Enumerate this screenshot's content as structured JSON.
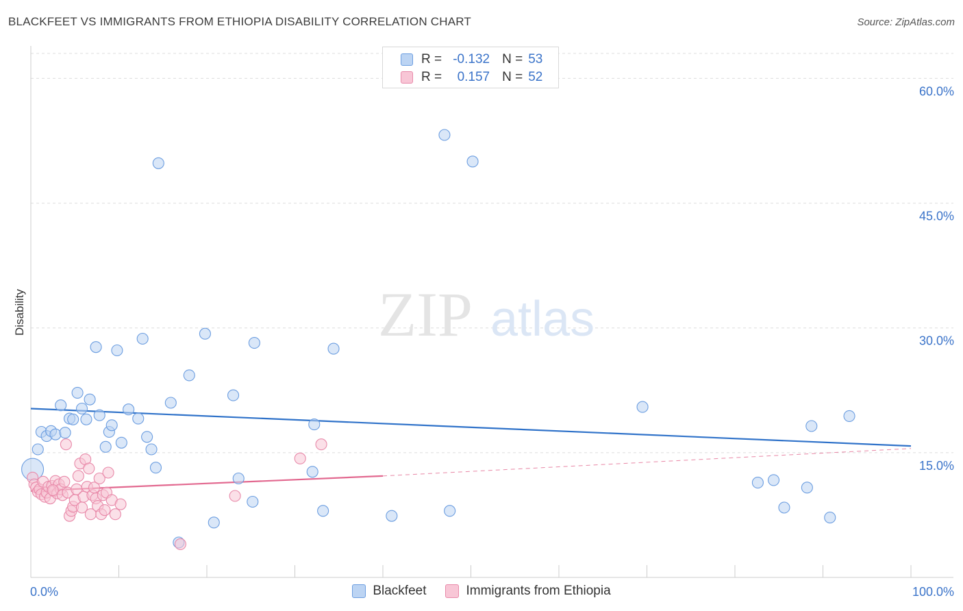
{
  "title": "BLACKFEET VS IMMIGRANTS FROM ETHIOPIA DISABILITY CORRELATION CHART",
  "source": "Source: ZipAtlas.com",
  "watermark": {
    "part1": "ZIP",
    "part2": "atlas"
  },
  "colors": {
    "blue_fill": "#bcd4f3",
    "blue_stroke": "#6b9de0",
    "blue_line": "#2f72c9",
    "pink_fill": "#f8c6d6",
    "pink_stroke": "#e889a9",
    "pink_line": "#e2688f",
    "axis_label": "#3a73c9",
    "grid": "#dddddd"
  },
  "legend_top": {
    "rows": [
      {
        "label": "R =",
        "r": "-0.132",
        "n_label": "N =",
        "n": "53",
        "series": "blue"
      },
      {
        "label": "R =",
        "r": "0.157",
        "n_label": "N =",
        "n": "52",
        "series": "pink"
      }
    ]
  },
  "chart_data": {
    "type": "scatter",
    "title": "BLACKFEET VS IMMIGRANTS FROM ETHIOPIA DISABILITY CORRELATION CHART",
    "xlabel": "",
    "ylabel": "Disability",
    "xlim": [
      0,
      100
    ],
    "ylim": [
      0,
      63
    ],
    "x_tick_labels": [
      "0.0%",
      "100.0%"
    ],
    "y_ticks": [
      15,
      30,
      45,
      60
    ],
    "y_tick_labels": [
      "15.0%",
      "30.0%",
      "45.0%",
      "60.0%"
    ],
    "grid": true,
    "legend_placement": "top-center",
    "series": [
      {
        "name": "Blackfeet",
        "color": "#6b9de0",
        "trend": {
          "x": [
            0,
            100
          ],
          "y": [
            20.3,
            15.8
          ],
          "style": "solid"
        },
        "points": [
          [
            0.2,
            13.0
          ],
          [
            0.8,
            15.4
          ],
          [
            1.2,
            17.5
          ],
          [
            1.8,
            17.0
          ],
          [
            2.3,
            17.6
          ],
          [
            2.8,
            17.2
          ],
          [
            3.4,
            20.7
          ],
          [
            3.9,
            17.4
          ],
          [
            4.4,
            19.1
          ],
          [
            4.8,
            19.0
          ],
          [
            5.3,
            22.2
          ],
          [
            5.8,
            20.3
          ],
          [
            6.3,
            19.0
          ],
          [
            6.7,
            21.4
          ],
          [
            7.4,
            27.7
          ],
          [
            7.8,
            19.5
          ],
          [
            8.5,
            15.7
          ],
          [
            8.9,
            17.5
          ],
          [
            9.2,
            18.3
          ],
          [
            9.8,
            27.3
          ],
          [
            10.3,
            16.2
          ],
          [
            11.1,
            20.2
          ],
          [
            12.2,
            19.1
          ],
          [
            12.7,
            28.7
          ],
          [
            13.2,
            16.9
          ],
          [
            13.7,
            15.4
          ],
          [
            14.2,
            13.2
          ],
          [
            14.5,
            49.8
          ],
          [
            15.9,
            21.0
          ],
          [
            16.8,
            4.2
          ],
          [
            18.0,
            24.3
          ],
          [
            19.8,
            29.3
          ],
          [
            20.8,
            6.6
          ],
          [
            23.0,
            21.9
          ],
          [
            23.6,
            11.9
          ],
          [
            25.2,
            9.1
          ],
          [
            25.4,
            28.2
          ],
          [
            32.0,
            12.7
          ],
          [
            32.2,
            18.4
          ],
          [
            33.2,
            8.0
          ],
          [
            34.4,
            27.5
          ],
          [
            41.0,
            7.4
          ],
          [
            47.0,
            53.2
          ],
          [
            47.6,
            8.0
          ],
          [
            50.2,
            50.0
          ],
          [
            69.5,
            20.5
          ],
          [
            82.6,
            11.4
          ],
          [
            84.4,
            11.7
          ],
          [
            85.6,
            8.4
          ],
          [
            88.2,
            10.8
          ],
          [
            88.7,
            18.2
          ],
          [
            90.8,
            7.2
          ],
          [
            93.0,
            19.4
          ]
        ]
      },
      {
        "name": "Immigrants from Ethiopia",
        "color": "#e889a9",
        "trend": {
          "x": [
            0,
            40
          ],
          "y": [
            10.4,
            12.2
          ],
          "style": "solid",
          "extend_to": [
            100,
            15.5
          ],
          "extend_style": "dashed"
        },
        "points": [
          [
            0.2,
            12.0
          ],
          [
            0.4,
            11.2
          ],
          [
            0.6,
            10.8
          ],
          [
            0.8,
            10.3
          ],
          [
            1.0,
            10.6
          ],
          [
            1.2,
            10.0
          ],
          [
            1.4,
            11.5
          ],
          [
            1.6,
            9.7
          ],
          [
            1.8,
            10.2
          ],
          [
            2.0,
            10.9
          ],
          [
            2.2,
            9.5
          ],
          [
            2.4,
            11.0
          ],
          [
            2.6,
            10.4
          ],
          [
            2.8,
            11.6
          ],
          [
            3.0,
            10.1
          ],
          [
            3.2,
            11.2
          ],
          [
            3.4,
            10.6
          ],
          [
            3.6,
            9.9
          ],
          [
            3.8,
            11.5
          ],
          [
            4.0,
            16.0
          ],
          [
            4.2,
            10.2
          ],
          [
            4.4,
            7.4
          ],
          [
            4.6,
            8.0
          ],
          [
            4.8,
            8.5
          ],
          [
            5.0,
            9.3
          ],
          [
            5.2,
            10.6
          ],
          [
            5.4,
            12.2
          ],
          [
            5.6,
            13.7
          ],
          [
            5.8,
            8.4
          ],
          [
            6.0,
            9.7
          ],
          [
            6.2,
            14.2
          ],
          [
            6.4,
            10.9
          ],
          [
            6.6,
            13.1
          ],
          [
            6.8,
            7.6
          ],
          [
            7.0,
            9.9
          ],
          [
            7.2,
            10.8
          ],
          [
            7.4,
            9.5
          ],
          [
            7.6,
            8.6
          ],
          [
            7.8,
            11.9
          ],
          [
            8.0,
            7.6
          ],
          [
            8.2,
            9.9
          ],
          [
            8.4,
            8.1
          ],
          [
            8.6,
            10.2
          ],
          [
            8.8,
            12.6
          ],
          [
            9.2,
            9.3
          ],
          [
            9.6,
            7.6
          ],
          [
            10.2,
            8.8
          ],
          [
            17.0,
            4.0
          ],
          [
            23.2,
            9.8
          ],
          [
            30.6,
            14.3
          ],
          [
            33.0,
            16.0
          ],
          [
            2.5,
            10.5
          ]
        ]
      }
    ]
  },
  "legend_bottom": [
    {
      "label": "Blackfeet",
      "series": "blue"
    },
    {
      "label": "Immigrants from Ethiopia",
      "series": "pink"
    }
  ]
}
